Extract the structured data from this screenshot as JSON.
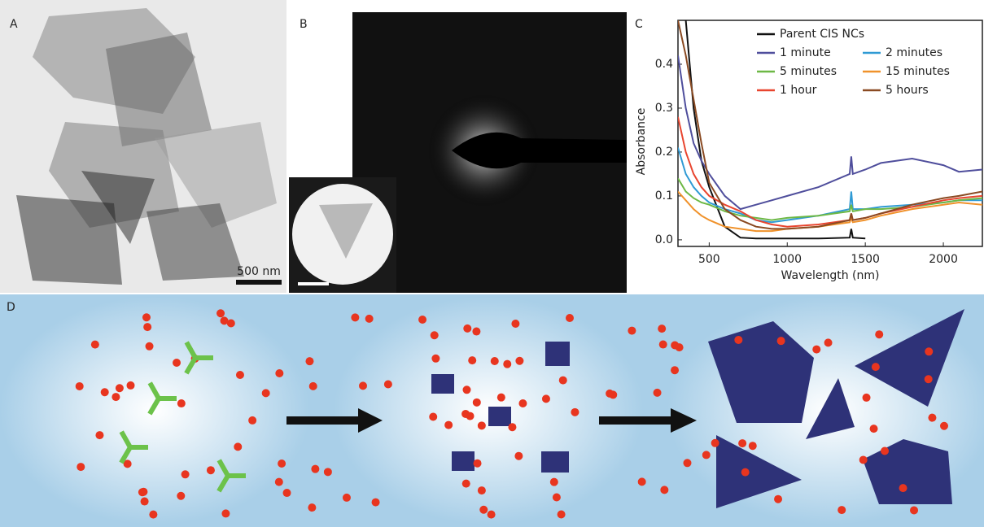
{
  "panel_labels": [
    "A",
    "B",
    "C",
    "D"
  ],
  "scale_bar": "500 nm",
  "chart_data": {
    "type": "line",
    "x_label": "Wavelength (nm)",
    "y_label": "Absorbance",
    "x": [
      300,
      350,
      400,
      450,
      500,
      600,
      700,
      800,
      900,
      1000,
      1200,
      1400,
      1410,
      1420,
      1500,
      1600,
      1800,
      2000,
      2100,
      2250
    ],
    "xlim": [
      300,
      2250
    ],
    "xticks": [
      500,
      1000,
      1500,
      2000
    ],
    "ylim": [
      -0.015,
      0.5
    ],
    "yticks": [
      {
        "value": 0,
        "label": "0.0"
      },
      0.1,
      0.2,
      0.3,
      0.4
    ],
    "legend": "top-right",
    "series": [
      {
        "name": "Parent CIS NCs",
        "color": "#111111",
        "values": [
          null,
          0.5,
          0.3,
          0.18,
          0.12,
          0.03,
          0.005,
          0.003,
          0.003,
          0.003,
          0.003,
          0.005,
          0.025,
          0.005,
          0.003,
          null,
          null,
          null,
          null,
          null
        ]
      },
      {
        "name": "1 minute",
        "color": "#4f4e9c",
        "values": [
          0.42,
          0.3,
          0.22,
          0.18,
          0.15,
          0.1,
          0.07,
          0.08,
          0.09,
          0.1,
          0.12,
          0.15,
          0.19,
          0.15,
          0.16,
          0.175,
          0.185,
          0.17,
          0.155,
          0.16
        ]
      },
      {
        "name": "2 minutes",
        "color": "#2f9ad4",
        "values": [
          0.21,
          0.15,
          0.12,
          0.1,
          0.085,
          0.07,
          0.06,
          0.045,
          0.04,
          0.045,
          0.055,
          0.07,
          0.11,
          0.07,
          0.07,
          0.075,
          0.08,
          0.085,
          0.09,
          0.09
        ]
      },
      {
        "name": "5 minutes",
        "color": "#6db845",
        "values": [
          0.14,
          0.11,
          0.095,
          0.085,
          0.08,
          0.065,
          0.055,
          0.05,
          0.045,
          0.05,
          0.055,
          0.065,
          0.08,
          0.065,
          0.07,
          0.07,
          0.075,
          0.085,
          0.09,
          0.095
        ]
      },
      {
        "name": "15 minutes",
        "color": "#f0922b",
        "values": [
          0.11,
          0.09,
          0.07,
          0.055,
          0.045,
          0.03,
          0.025,
          0.02,
          0.02,
          0.025,
          0.03,
          0.04,
          0.05,
          0.04,
          0.045,
          0.055,
          0.07,
          0.08,
          0.085,
          0.08
        ]
      },
      {
        "name": "1 hour",
        "color": "#e8452f",
        "values": [
          0.28,
          0.2,
          0.15,
          0.12,
          0.1,
          0.08,
          0.065,
          0.045,
          0.035,
          0.03,
          0.035,
          0.045,
          0.06,
          0.045,
          0.05,
          0.06,
          0.075,
          0.09,
          0.095,
          0.1
        ]
      },
      {
        "name": "5 hours",
        "color": "#8a4a22",
        "values": [
          0.5,
          0.42,
          0.32,
          0.22,
          0.13,
          0.07,
          0.045,
          0.03,
          0.025,
          0.025,
          0.03,
          0.045,
          0.06,
          0.045,
          0.05,
          0.06,
          0.08,
          0.095,
          0.1,
          0.11
        ]
      }
    ]
  }
}
